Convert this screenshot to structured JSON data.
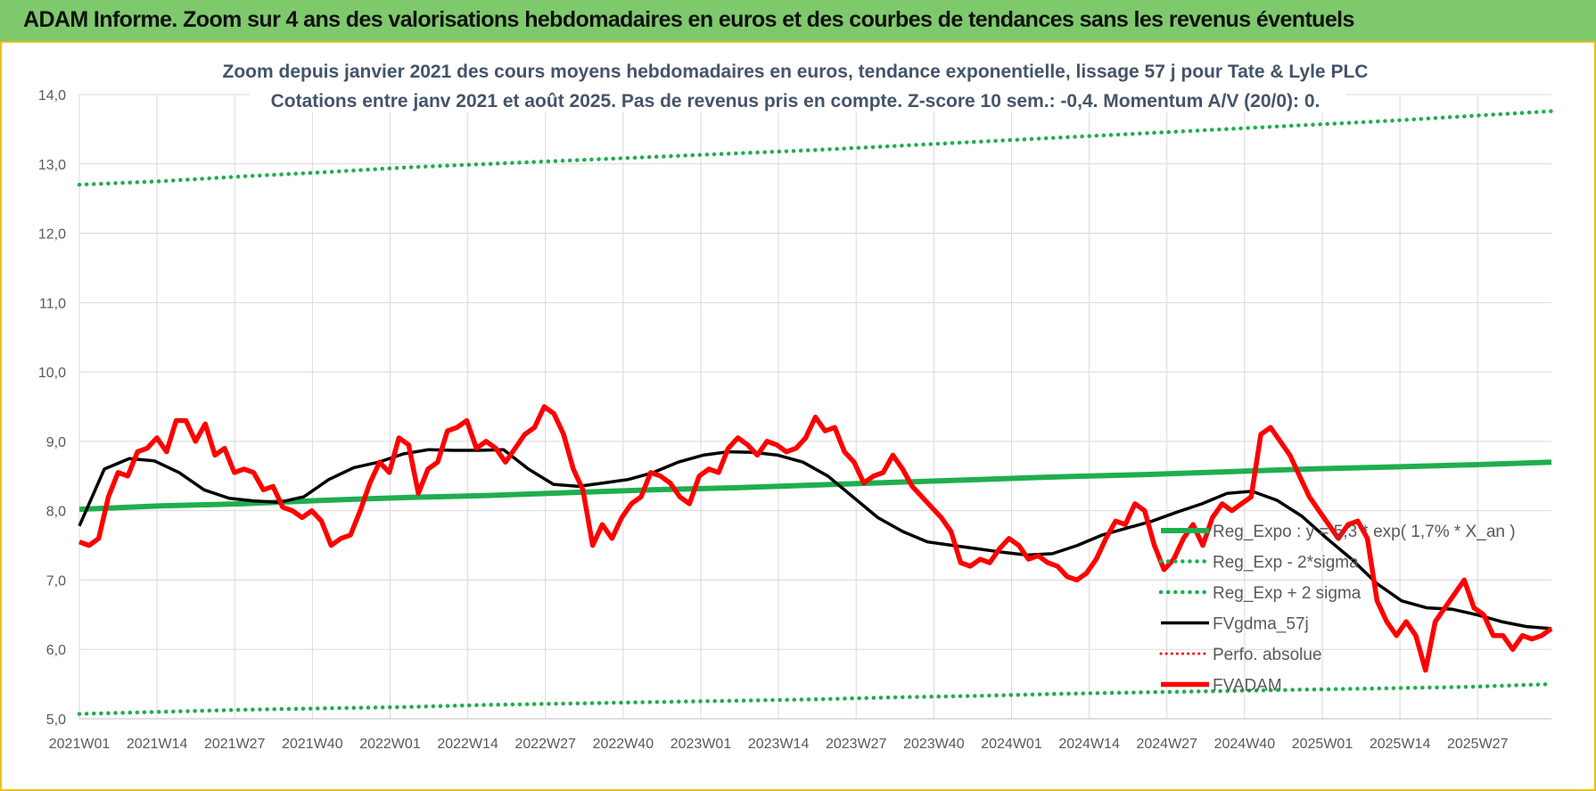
{
  "banner": {
    "title": "ADAM Informe. Zoom sur 4 ans des valorisations hebdomadaires en euros et des courbes de tendances sans les revenus éventuels"
  },
  "colors": {
    "banner_bg": "#7ec96c",
    "frame": "#e8c21a",
    "trend": "#1fae4f",
    "black": "#000000",
    "red": "#ff0000",
    "grid": "#d9d9d9"
  },
  "chart_data": {
    "type": "line",
    "title": "Zoom depuis janvier 2021 des cours moyens hebdomadaires en euros, tendance exponentielle, lissage 57 j pour Tate & Lyle PLC",
    "subtitle": "Cotations entre janv 2021 et août 2025.  Pas de revenus pris en compte. Z-score 10 sem.: -0,4. Momentum A/V (20/0): 0.",
    "xlabel": "",
    "ylabel": "",
    "ylim": [
      5,
      14
    ],
    "yticks": [
      "5,0",
      "6,0",
      "7,0",
      "8,0",
      "9,0",
      "10,0",
      "11,0",
      "12,0",
      "13,0",
      "14,0"
    ],
    "xticks": [
      "2021W01",
      "2021W14",
      "2021W27",
      "2021W40",
      "2022W01",
      "2022W14",
      "2022W27",
      "2022W40",
      "2023W01",
      "2023W14",
      "2023W27",
      "2023W40",
      "2024W01",
      "2024W14",
      "2024W27",
      "2024W40",
      "2025W01",
      "2025W14",
      "2025W27"
    ],
    "grid": true,
    "legend_position": "right",
    "series": [
      {
        "name": "Reg_Expo : y = 5,3 * exp( 1,7% *  X_an )",
        "style": "solid-green",
        "values": [
          8.02,
          8.07,
          8.1,
          8.15,
          8.19,
          8.22,
          8.26,
          8.3,
          8.33,
          8.37,
          8.41,
          8.45,
          8.49,
          8.52,
          8.56,
          8.6,
          8.63,
          8.66,
          8.7
        ]
      },
      {
        "name": "Reg_Exp - 2*sigma",
        "style": "dotted-green",
        "values": [
          5.07,
          5.1,
          5.13,
          5.15,
          5.17,
          5.2,
          5.22,
          5.24,
          5.26,
          5.28,
          5.31,
          5.33,
          5.36,
          5.38,
          5.4,
          5.42,
          5.44,
          5.46,
          5.5
        ]
      },
      {
        "name": "Reg_Exp + 2 sigma",
        "style": "dotted-green",
        "values": [
          12.7,
          12.75,
          12.82,
          12.88,
          12.95,
          13.0,
          13.05,
          13.1,
          13.15,
          13.2,
          13.26,
          13.32,
          13.38,
          13.44,
          13.5,
          13.56,
          13.62,
          13.69,
          13.76
        ]
      },
      {
        "name": "FVgdma_57j",
        "style": "solid-black",
        "values": [
          7.78,
          8.6,
          8.75,
          8.72,
          8.55,
          8.3,
          8.18,
          8.14,
          8.12,
          8.2,
          8.45,
          8.62,
          8.7,
          8.82,
          8.88,
          8.87,
          8.87,
          8.88,
          8.6,
          8.38,
          8.35,
          8.4,
          8.45,
          8.55,
          8.7,
          8.8,
          8.85,
          8.84,
          8.8,
          8.7,
          8.5,
          8.2,
          7.9,
          7.7,
          7.55,
          7.5,
          7.45,
          7.4,
          7.36,
          7.38,
          7.5,
          7.65,
          7.75,
          7.85,
          7.98,
          8.1,
          8.25,
          8.28,
          8.15,
          7.92,
          7.6,
          7.3,
          6.95,
          6.7,
          6.6,
          6.58,
          6.5,
          6.4,
          6.33,
          6.3
        ]
      },
      {
        "name": "Perfo. absolue",
        "style": "dotted-red",
        "values": []
      },
      {
        "name": "FVADAM",
        "style": "solid-red",
        "values": [
          7.55,
          7.5,
          7.6,
          8.2,
          8.55,
          8.5,
          8.85,
          8.9,
          9.05,
          8.85,
          9.3,
          9.3,
          9.0,
          9.25,
          8.8,
          8.9,
          8.55,
          8.6,
          8.55,
          8.3,
          8.35,
          8.05,
          8.0,
          7.9,
          8.0,
          7.85,
          7.5,
          7.6,
          7.65,
          8.0,
          8.4,
          8.7,
          8.55,
          9.05,
          8.95,
          8.25,
          8.6,
          8.7,
          9.15,
          9.2,
          9.3,
          8.9,
          9.0,
          8.9,
          8.7,
          8.9,
          9.1,
          9.2,
          9.5,
          9.4,
          9.1,
          8.6,
          8.3,
          7.5,
          7.8,
          7.6,
          7.9,
          8.1,
          8.2,
          8.55,
          8.5,
          8.4,
          8.2,
          8.1,
          8.5,
          8.6,
          8.55,
          8.9,
          9.05,
          8.95,
          8.8,
          9.0,
          8.95,
          8.85,
          8.9,
          9.05,
          9.35,
          9.15,
          9.2,
          8.85,
          8.7,
          8.4,
          8.5,
          8.55,
          8.8,
          8.6,
          8.35,
          8.2,
          8.05,
          7.9,
          7.7,
          7.25,
          7.2,
          7.3,
          7.25,
          7.45,
          7.6,
          7.5,
          7.3,
          7.35,
          7.25,
          7.2,
          7.05,
          7.0,
          7.1,
          7.3,
          7.6,
          7.85,
          7.8,
          8.1,
          8.0,
          7.5,
          7.15,
          7.3,
          7.6,
          7.8,
          7.5,
          7.9,
          8.1,
          8.0,
          8.1,
          8.2,
          9.1,
          9.2,
          9.0,
          8.8,
          8.5,
          8.2,
          8.0,
          7.8,
          7.6,
          7.8,
          7.85,
          7.6,
          6.7,
          6.4,
          6.2,
          6.4,
          6.2,
          5.7,
          6.4,
          6.6,
          6.8,
          7.0,
          6.6,
          6.5,
          6.2,
          6.2,
          6.0,
          6.2,
          6.15,
          6.2,
          6.3
        ]
      }
    ]
  }
}
